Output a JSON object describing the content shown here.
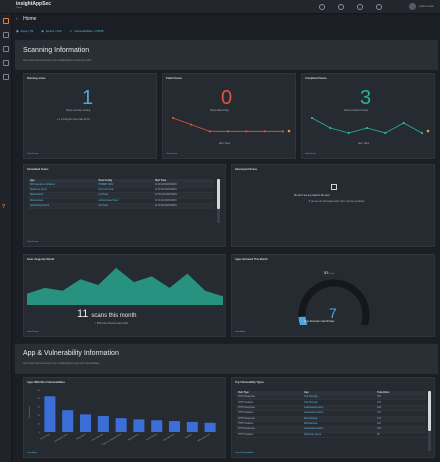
{
  "app": {
    "brand": "insightAppSec",
    "tag": "Rapid7"
  },
  "user": {
    "name": "runtime tester"
  },
  "breadcrumb": {
    "title": "Home"
  },
  "counts": {
    "apps": "Apps | 53",
    "scans": "Scans | 334",
    "vulns": "Vulnerabilities | 27835"
  },
  "scanning": {
    "title": "Scanning Information",
    "subtitle": "Get a high level overview of your InsightAppSec scanning health"
  },
  "running": {
    "title": "Running scans",
    "value": "1",
    "desc": "Scans currently running",
    "note": "1 running for more than 24 hrs",
    "link": "View Scans"
  },
  "failed": {
    "title": "Failed Scans",
    "value": "0",
    "desc": "Scans failed today",
    "axis": "last 7 days",
    "link": "View Scans",
    "series": [
      3,
      2,
      1,
      1,
      1,
      1,
      1
    ],
    "ylim": [
      0,
      3
    ],
    "color": "#e0533c"
  },
  "completed": {
    "title": "Completed Scans",
    "value": "3",
    "desc": "Scans completed today",
    "axis": "last 7 days",
    "link": "View Scans",
    "series": [
      4,
      2,
      1,
      2,
      1,
      3,
      1
    ],
    "ylim": [
      0,
      4
    ],
    "color": "#27b599"
  },
  "scheduled": {
    "title": "Scheduled Scans",
    "columns": [
      "App",
      "Scan Config",
      "Start Time"
    ],
    "rows": [
      [
        "ISS Insurance Container",
        "HNB987-0001",
        "11:00 AM 06/02/2019"
      ],
      [
        "WebGoat_Demo",
        "Non-trust Scan",
        "11:00 AM 06/02/2019"
      ],
      [
        "Webscantest",
        "Full Scan",
        "07:00 AM 06/02/2019"
      ],
      [
        "Webscantest",
        "Authenticated Scan",
        "11:30 AM 06/02/2019"
      ],
      [
        "webscantest.demo",
        "Full Scan",
        "11:30 AM 06/02/2019"
      ]
    ],
    "link": "View Scans"
  },
  "interrupted": {
    "title": "Interrupted Scans",
    "empty_title": "We don't see any data for this card.",
    "empty_desc": "If you see an interrupted scan, there may be a problem."
  },
  "usage": {
    "title": "Scan Usage By Month",
    "value": "11",
    "value_label": "scans this month",
    "trend": "86% since this time last month",
    "link": "View Scans",
    "series": [
      4,
      6,
      5,
      9,
      7,
      13,
      8,
      10,
      6,
      11,
      5,
      3
    ],
    "ylim": [
      0,
      14
    ],
    "color": "#27b599"
  },
  "apps_month": {
    "title": "Apps Scanned This Month",
    "total": "53",
    "total_label": "Total",
    "value": "7",
    "desc": "Apps Scanned in last 30 days",
    "link": "View Apps",
    "fraction": 0.13,
    "color": "#4da8df"
  },
  "appvuln": {
    "title": "App & Vulnerability Information",
    "subtitle": "Get a high level overview of your InsightAppSec apps and vulnerabilities"
  },
  "most_vuln": {
    "title": "Apps With Most Vulnerabilities",
    "ylabel": "Vulnerabilities",
    "link": "View Apps"
  },
  "chart_data": {
    "type": "bar",
    "categories": [
      "Test Test App",
      "webscantest.demo",
      "Webscantest",
      "Demo Shop App",
      "Buggy-on-Crashpads-2019",
      "WebGoatDemo",
      "Juice Shop App",
      "Extra Wiki demo",
      "Hackazon",
      "Webscantest.com"
    ],
    "values": [
      85,
      52,
      42,
      38,
      33,
      30,
      28,
      26,
      24,
      22
    ],
    "ylim": [
      0,
      100
    ],
    "yticks": [
      0,
      20,
      40,
      60,
      80,
      100
    ],
    "ylabel": "Vulnerabilities",
    "color": "#3b6ed6"
  },
  "top_vuln": {
    "title": "Top Vulnerability Types",
    "columns": [
      "Vuln Type",
      "App",
      "Total Vulns"
    ],
    "rows": [
      [
        "HTTP Response",
        "Test Test App",
        "370"
      ],
      [
        "HTTP Headers",
        "Test Test App",
        "276"
      ],
      [
        "HTTP Response",
        "webscantest.demo",
        "193"
      ],
      [
        "HTTP Headers",
        "webscantest.demo",
        "170"
      ],
      [
        "HTTP Response",
        "Webscantest",
        "147"
      ],
      [
        "HTTP Headers",
        "Webscantest",
        "119"
      ],
      [
        "HTTP Response",
        "webscantest.demo",
        "103"
      ],
      [
        "HTTP Headers",
        "WebGoat_Demo",
        "97"
      ]
    ],
    "link": "View Vulnerabilities"
  }
}
